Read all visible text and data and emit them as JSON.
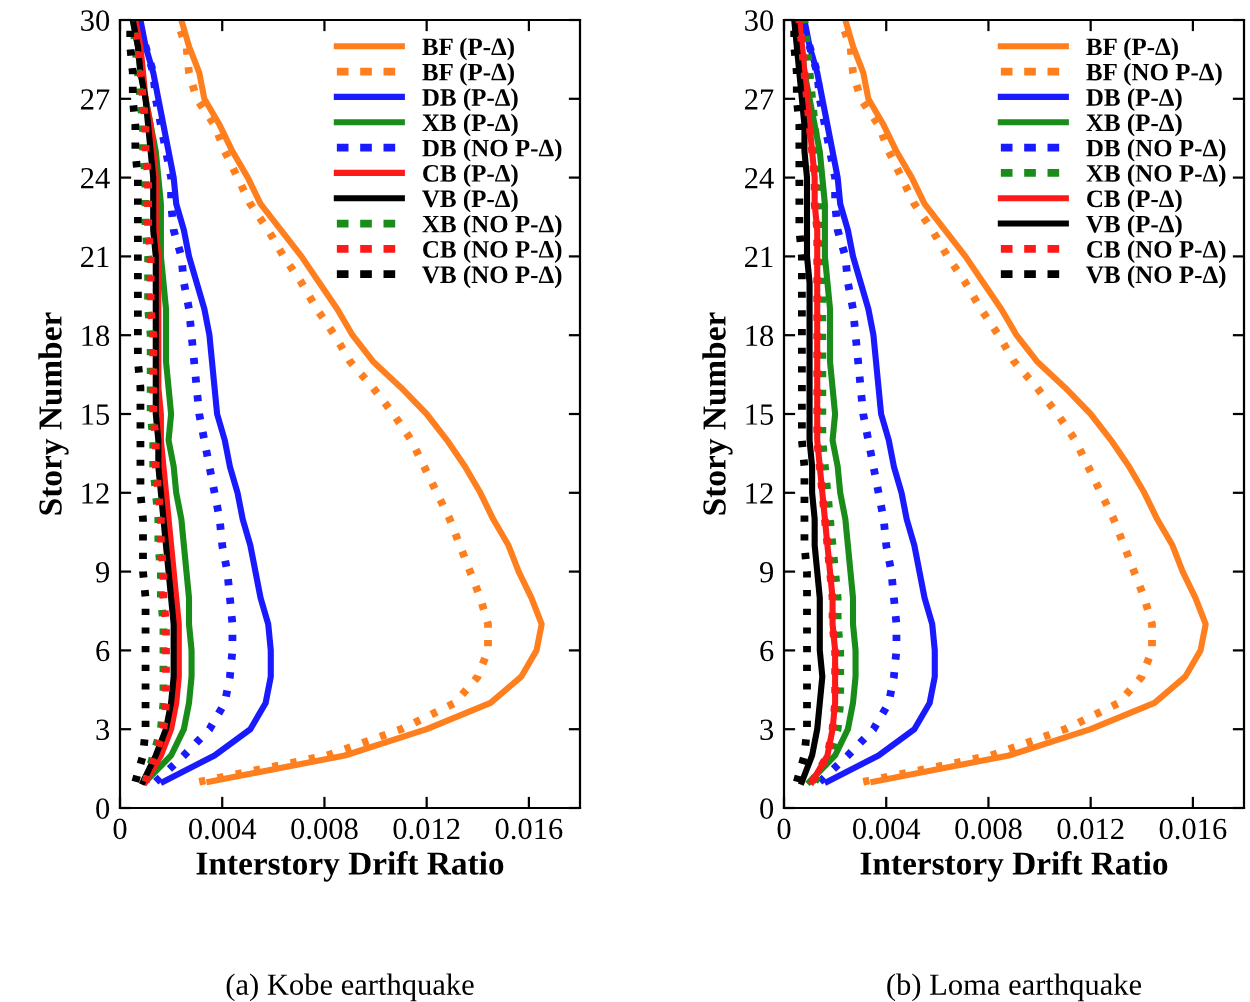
{
  "chart_data": [
    {
      "type": "line",
      "xlabel": "Interstory Drift Ratio",
      "ylabel": "Story Number",
      "annotations": [
        "(a) Kobe earthquake"
      ],
      "x": [
        1,
        2,
        3,
        4,
        5,
        6,
        7,
        8,
        9,
        10,
        11,
        12,
        13,
        14,
        15,
        16,
        17,
        18,
        19,
        20,
        21,
        22,
        23,
        24,
        25,
        26,
        27,
        28,
        29,
        30
      ],
      "orientation": "horizontal",
      "xlim": [
        0,
        0.018
      ],
      "xticks": [
        0,
        0.004,
        0.008,
        0.012,
        0.016
      ],
      "ylim": [
        0,
        30
      ],
      "yticks": [
        0,
        3,
        6,
        9,
        12,
        15,
        18,
        21,
        24,
        27,
        30
      ],
      "grid": false,
      "legend": "top right",
      "series": [
        {
          "name": "BF (P-Δ)",
          "color": "#ff7f1e",
          "line_style": "solid",
          "values": [
            0.0035,
            0.0088,
            0.012,
            0.0145,
            0.0157,
            0.0163,
            0.0165,
            0.0161,
            0.0156,
            0.0152,
            0.0146,
            0.0141,
            0.0135,
            0.0128,
            0.012,
            0.011,
            0.0099,
            0.0091,
            0.0085,
            0.0078,
            0.0071,
            0.0063,
            0.0055,
            0.005,
            0.0044,
            0.0039,
            0.0033,
            0.0031,
            0.0027,
            0.0024
          ]
        },
        {
          "name": "BF (P-Δ)",
          "color": "#ff7f1e",
          "line_style": "dotted",
          "values": [
            0.0031,
            0.0081,
            0.011,
            0.0131,
            0.014,
            0.0144,
            0.0144,
            0.0141,
            0.0137,
            0.0133,
            0.0129,
            0.0124,
            0.0119,
            0.0114,
            0.0107,
            0.0099,
            0.009,
            0.0084,
            0.0077,
            0.0071,
            0.0064,
            0.0058,
            0.0051,
            0.0046,
            0.0041,
            0.0037,
            0.003,
            0.0027,
            0.0026,
            0.0022
          ]
        },
        {
          "name": "DB (P-Δ)",
          "color": "#1a1aff",
          "line_style": "solid",
          "values": [
            0.0017,
            0.0037,
            0.0051,
            0.0057,
            0.0059,
            0.0059,
            0.0058,
            0.0055,
            0.0053,
            0.0051,
            0.0048,
            0.0046,
            0.0043,
            0.0041,
            0.0038,
            0.0037,
            0.0036,
            0.0035,
            0.0033,
            0.003,
            0.0027,
            0.0025,
            0.0022,
            0.0021,
            0.0019,
            0.0017,
            0.0015,
            0.0013,
            0.001,
            0.0008
          ]
        },
        {
          "name": "XB (P-Δ)",
          "color": "#1a8c1a",
          "line_style": "solid",
          "values": [
            0.001,
            0.002,
            0.0025,
            0.0027,
            0.0028,
            0.0028,
            0.0027,
            0.0027,
            0.0026,
            0.0025,
            0.0024,
            0.0022,
            0.0021,
            0.0019,
            0.002,
            0.0019,
            0.0018,
            0.0018,
            0.0018,
            0.0017,
            0.0016,
            0.0016,
            0.0016,
            0.0015,
            0.0014,
            0.0012,
            0.001,
            0.0008,
            0.0007,
            0.0005
          ]
        },
        {
          "name": "DB (NO P-Δ)",
          "color": "#1a1aff",
          "line_style": "dotted",
          "values": [
            0.0014,
            0.0025,
            0.0035,
            0.0041,
            0.0043,
            0.0044,
            0.0044,
            0.0043,
            0.0042,
            0.004,
            0.0039,
            0.0037,
            0.0035,
            0.0033,
            0.0031,
            0.003,
            0.0029,
            0.0028,
            0.0027,
            0.0025,
            0.0024,
            0.0021,
            0.002,
            0.002,
            0.0018,
            0.0016,
            0.0014,
            0.0013,
            0.001,
            0.0007
          ]
        },
        {
          "name": "CB (P-Δ)",
          "color": "#ff1a1a",
          "line_style": "solid",
          "values": [
            0.001,
            0.0016,
            0.002,
            0.0022,
            0.0023,
            0.0023,
            0.0023,
            0.0022,
            0.0021,
            0.002,
            0.0019,
            0.0018,
            0.0017,
            0.0016,
            0.0016,
            0.0015,
            0.0015,
            0.0015,
            0.0015,
            0.0015,
            0.0015,
            0.0014,
            0.0014,
            0.0014,
            0.0013,
            0.0012,
            0.001,
            0.0009,
            0.0008,
            0.0006
          ]
        },
        {
          "name": "VB (P-Δ)",
          "color": "#000000",
          "line_style": "solid",
          "values": [
            0.0009,
            0.0014,
            0.0018,
            0.002,
            0.0021,
            0.0021,
            0.0021,
            0.002,
            0.0019,
            0.0018,
            0.0017,
            0.0016,
            0.0015,
            0.0015,
            0.0014,
            0.0014,
            0.0014,
            0.0014,
            0.0014,
            0.0014,
            0.0014,
            0.0013,
            0.0013,
            0.0013,
            0.0012,
            0.0011,
            0.001,
            0.0008,
            0.0007,
            0.0005
          ]
        },
        {
          "name": "XB (NO P-Δ)",
          "color": "#1a8c1a",
          "line_style": "dotted",
          "values": [
            0.001,
            0.0013,
            0.0016,
            0.0017,
            0.0017,
            0.0017,
            0.0017,
            0.0016,
            0.0016,
            0.0015,
            0.0015,
            0.0014,
            0.0013,
            0.0013,
            0.0012,
            0.0012,
            0.0012,
            0.0012,
            0.0011,
            0.0011,
            0.0011,
            0.001,
            0.001,
            0.001,
            0.0009,
            0.0009,
            0.0008,
            0.0007,
            0.0006,
            0.0005
          ]
        },
        {
          "name": "CB (NO P-Δ)",
          "color": "#ff1a1a",
          "line_style": "dotted",
          "values": [
            0.001,
            0.0014,
            0.0017,
            0.0018,
            0.0018,
            0.0018,
            0.0018,
            0.0017,
            0.0017,
            0.0016,
            0.0016,
            0.0015,
            0.0014,
            0.0014,
            0.0013,
            0.0013,
            0.0013,
            0.0013,
            0.0012,
            0.0012,
            0.0012,
            0.0011,
            0.0011,
            0.0011,
            0.001,
            0.001,
            0.0009,
            0.0008,
            0.0007,
            0.0006
          ]
        },
        {
          "name": "VB (NO P-Δ)",
          "color": "#000000",
          "line_style": "dotted",
          "values": [
            0.0006,
            0.0009,
            0.001,
            0.001,
            0.001,
            0.001,
            0.001,
            0.001,
            0.0009,
            0.0009,
            0.0009,
            0.0008,
            0.0008,
            0.0008,
            0.0008,
            0.0008,
            0.0007,
            0.0007,
            0.0007,
            0.0007,
            0.0007,
            0.0007,
            0.0007,
            0.0007,
            0.0006,
            0.0006,
            0.0005,
            0.0005,
            0.0004,
            0.0004
          ]
        }
      ]
    },
    {
      "type": "line",
      "xlabel": "Interstory Drift Ratio",
      "ylabel": "Story Number",
      "annotations": [
        "(b) Loma earthquake"
      ],
      "x": [
        1,
        2,
        3,
        4,
        5,
        6,
        7,
        8,
        9,
        10,
        11,
        12,
        13,
        14,
        15,
        16,
        17,
        18,
        19,
        20,
        21,
        22,
        23,
        24,
        25,
        26,
        27,
        28,
        29,
        30
      ],
      "orientation": "horizontal",
      "xlim": [
        0,
        0.018
      ],
      "xticks": [
        0,
        0.004,
        0.008,
        0.012,
        0.016
      ],
      "ylim": [
        0,
        30
      ],
      "yticks": [
        0,
        3,
        6,
        9,
        12,
        15,
        18,
        21,
        24,
        27,
        30
      ],
      "grid": false,
      "legend": "top right",
      "series": [
        {
          "name": "BF (P-Δ)",
          "color": "#ff7f1e",
          "line_style": "solid",
          "values": [
            0.0035,
            0.0088,
            0.012,
            0.0145,
            0.0157,
            0.0163,
            0.0165,
            0.0161,
            0.0156,
            0.0152,
            0.0146,
            0.0141,
            0.0135,
            0.0128,
            0.012,
            0.011,
            0.0099,
            0.0091,
            0.0085,
            0.0078,
            0.0071,
            0.0063,
            0.0055,
            0.005,
            0.0044,
            0.0039,
            0.0033,
            0.0031,
            0.0027,
            0.0024
          ]
        },
        {
          "name": "BF (NO P-Δ)",
          "color": "#ff7f1e",
          "line_style": "dotted",
          "values": [
            0.0031,
            0.0081,
            0.011,
            0.0131,
            0.014,
            0.0144,
            0.0144,
            0.0141,
            0.0137,
            0.0133,
            0.0129,
            0.0124,
            0.0119,
            0.0114,
            0.0107,
            0.0099,
            0.009,
            0.0084,
            0.0077,
            0.0071,
            0.0064,
            0.0058,
            0.0051,
            0.0046,
            0.0041,
            0.0037,
            0.003,
            0.0027,
            0.0026,
            0.0022
          ]
        },
        {
          "name": "DB (P-Δ)",
          "color": "#1a1aff",
          "line_style": "solid",
          "values": [
            0.0017,
            0.0037,
            0.0051,
            0.0057,
            0.0059,
            0.0059,
            0.0058,
            0.0055,
            0.0053,
            0.0051,
            0.0048,
            0.0046,
            0.0043,
            0.0041,
            0.0038,
            0.0037,
            0.0036,
            0.0035,
            0.0033,
            0.003,
            0.0027,
            0.0025,
            0.0022,
            0.0021,
            0.0019,
            0.0017,
            0.0015,
            0.0013,
            0.001,
            0.0008
          ]
        },
        {
          "name": "XB (P-Δ)",
          "color": "#1a8c1a",
          "line_style": "solid",
          "values": [
            0.001,
            0.002,
            0.0025,
            0.0027,
            0.0028,
            0.0028,
            0.0027,
            0.0027,
            0.0026,
            0.0025,
            0.0024,
            0.0022,
            0.0021,
            0.0019,
            0.002,
            0.0019,
            0.0018,
            0.0018,
            0.0018,
            0.0017,
            0.0016,
            0.0016,
            0.0016,
            0.0015,
            0.0014,
            0.0012,
            0.001,
            0.0008,
            0.0007,
            0.0005
          ]
        },
        {
          "name": "DB (NO P-Δ)",
          "color": "#1a1aff",
          "line_style": "dotted",
          "values": [
            0.0014,
            0.0025,
            0.0035,
            0.0041,
            0.0043,
            0.0044,
            0.0044,
            0.0043,
            0.0042,
            0.004,
            0.0039,
            0.0037,
            0.0035,
            0.0033,
            0.0031,
            0.003,
            0.0029,
            0.0028,
            0.0027,
            0.0025,
            0.0024,
            0.0021,
            0.002,
            0.002,
            0.0018,
            0.0016,
            0.0014,
            0.0013,
            0.001,
            0.0007
          ]
        },
        {
          "name": "XB (NO P-Δ)",
          "color": "#1a8c1a",
          "line_style": "dotted",
          "values": [
            0.0012,
            0.0018,
            0.0021,
            0.0022,
            0.0022,
            0.0022,
            0.0021,
            0.0021,
            0.002,
            0.0019,
            0.0018,
            0.0017,
            0.0016,
            0.0015,
            0.0015,
            0.0015,
            0.0015,
            0.0015,
            0.0015,
            0.0015,
            0.0015,
            0.0015,
            0.0014,
            0.0014,
            0.0013,
            0.0012,
            0.0011,
            0.001,
            0.0009,
            0.0008
          ]
        },
        {
          "name": "CB (P-Δ)",
          "color": "#ff1a1a",
          "line_style": "solid",
          "values": [
            0.0011,
            0.0017,
            0.0019,
            0.002,
            0.002,
            0.002,
            0.0019,
            0.0019,
            0.0018,
            0.0017,
            0.0016,
            0.0015,
            0.0014,
            0.0013,
            0.0013,
            0.0013,
            0.0013,
            0.0013,
            0.0013,
            0.0013,
            0.0013,
            0.0013,
            0.0012,
            0.0012,
            0.0011,
            0.001,
            0.0009,
            0.0008,
            0.0007,
            0.0006
          ]
        },
        {
          "name": "VB (P-Δ)",
          "color": "#000000",
          "line_style": "solid",
          "values": [
            0.0007,
            0.0011,
            0.0013,
            0.0014,
            0.0015,
            0.0014,
            0.0014,
            0.0014,
            0.0013,
            0.0012,
            0.0012,
            0.0011,
            0.0011,
            0.001,
            0.001,
            0.001,
            0.001,
            0.001,
            0.001,
            0.001,
            0.0009,
            0.0009,
            0.0009,
            0.0009,
            0.0008,
            0.0008,
            0.0007,
            0.0006,
            0.0005,
            0.0004
          ]
        },
        {
          "name": "CB (NO P-Δ)",
          "color": "#ff1a1a",
          "line_style": "dotted",
          "values": [
            0.0011,
            0.0017,
            0.0019,
            0.002,
            0.002,
            0.002,
            0.0019,
            0.0019,
            0.0018,
            0.0017,
            0.0016,
            0.0015,
            0.0014,
            0.0013,
            0.0013,
            0.0013,
            0.0013,
            0.0013,
            0.0013,
            0.0013,
            0.0013,
            0.0013,
            0.0012,
            0.0012,
            0.0011,
            0.001,
            0.0009,
            0.0008,
            0.0007,
            0.0006
          ]
        },
        {
          "name": "VB (NO P-Δ)",
          "color": "#000000",
          "line_style": "dotted",
          "values": [
            0.0005,
            0.0008,
            0.0009,
            0.0009,
            0.0009,
            0.0009,
            0.0009,
            0.0009,
            0.0009,
            0.0008,
            0.0008,
            0.0008,
            0.0008,
            0.0007,
            0.0007,
            0.0007,
            0.0007,
            0.0007,
            0.0007,
            0.0007,
            0.0007,
            0.0006,
            0.0006,
            0.0006,
            0.0006,
            0.0006,
            0.0005,
            0.0005,
            0.0004,
            0.0004
          ]
        }
      ]
    }
  ]
}
